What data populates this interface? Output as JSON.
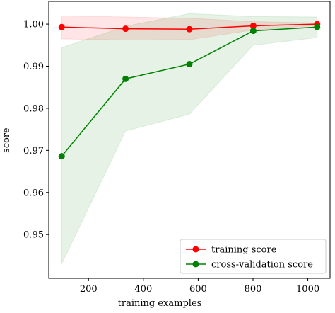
{
  "chart_data": {
    "type": "line",
    "x_label": "training examples",
    "y_label": "score",
    "x": [
      102,
      335,
      568,
      801,
      1034
    ],
    "series": [
      {
        "name": "training score",
        "color": "#ff0000",
        "values": [
          0.9993,
          0.9989,
          0.9988,
          0.9996,
          1.0
        ],
        "band_lower": [
          0.9965,
          0.9962,
          0.9963,
          0.9986,
          0.9997
        ],
        "band_upper": [
          1.002,
          1.0017,
          1.0014,
          1.0006,
          1.0003
        ]
      },
      {
        "name": "cross-validation score",
        "color": "#008000",
        "values": [
          0.9686,
          0.987,
          0.9905,
          0.9984,
          0.9993
        ],
        "band_lower": [
          0.943,
          0.9746,
          0.9786,
          0.995,
          0.9968
        ],
        "band_upper": [
          0.9944,
          0.9995,
          1.0025,
          1.0018,
          1.0017
        ]
      }
    ],
    "xlim": [
      55,
      1081
    ],
    "xticks": [
      200,
      400,
      600,
      800,
      1000
    ],
    "ylim": [
      0.9396,
      1.0054
    ],
    "yticks": [
      {
        "value": 0.95,
        "label": "0.95"
      },
      {
        "value": 0.96,
        "label": "0.96"
      },
      {
        "value": 0.97,
        "label": "0.97"
      },
      {
        "value": 0.98,
        "label": "0.98"
      },
      {
        "value": 0.99,
        "label": "0.99"
      },
      {
        "value": 1.0,
        "label": "1.00"
      }
    ],
    "legend_position": "lower right",
    "band_opacity": 0.1
  }
}
